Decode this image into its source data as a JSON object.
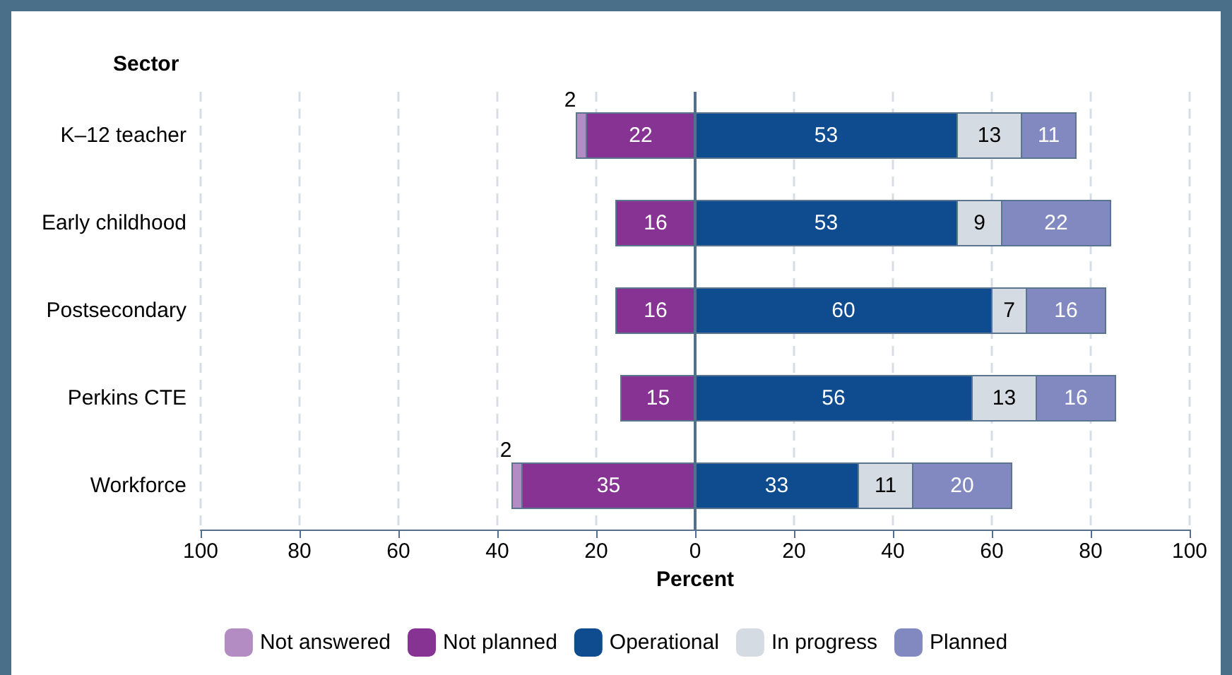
{
  "chart_data": {
    "type": "bar",
    "orientation": "horizontal",
    "ylabel": "Sector",
    "xlabel": "Percent",
    "categories": [
      "K–12 teacher",
      "Early childhood",
      "Postsecondary",
      "Perkins CTE",
      "Workforce"
    ],
    "series": [
      {
        "name": "Not answered",
        "color": "#b48cc4",
        "base": [
          -24,
          null,
          null,
          null,
          -37
        ],
        "values": [
          2,
          null,
          null,
          null,
          2
        ],
        "value_labels": [
          "2",
          null,
          null,
          null,
          "2"
        ]
      },
      {
        "name": "Not planned",
        "color": "#863393",
        "base": [
          -22,
          -16,
          -16,
          -15,
          -35
        ],
        "values": [
          22,
          16,
          16,
          15,
          35
        ],
        "value_labels": [
          "22",
          "16",
          "16",
          "15",
          "35"
        ]
      },
      {
        "name": "Operational",
        "color": "#0e4c8f",
        "base": [
          0,
          0,
          0,
          0,
          0
        ],
        "values": [
          53,
          53,
          60,
          56,
          33
        ],
        "value_labels": [
          "53",
          "53",
          "60",
          "56",
          "33"
        ]
      },
      {
        "name": "In progress",
        "color": "#d5dbe3",
        "base": [
          53,
          53,
          60,
          56,
          33
        ],
        "values": [
          13,
          9,
          7,
          13,
          11
        ],
        "value_labels": [
          "13",
          "9",
          "7",
          "13",
          "11"
        ]
      },
      {
        "name": "Planned",
        "color": "#8189c0",
        "base": [
          66,
          62,
          67,
          69,
          44
        ],
        "values": [
          11,
          22,
          16,
          16,
          20
        ],
        "value_labels": [
          "11",
          "22",
          "16",
          "16",
          "20"
        ]
      }
    ],
    "xlim": [
      -100,
      100
    ],
    "xticks": [
      {
        "value": -100,
        "label": "100"
      },
      {
        "value": -80,
        "label": "80"
      },
      {
        "value": -60,
        "label": "60"
      },
      {
        "value": -40,
        "label": "40"
      },
      {
        "value": -20,
        "label": "20"
      },
      0,
      20,
      40,
      60,
      80,
      100
    ],
    "ref_lines": [
      {
        "axis": "x",
        "value": 0,
        "color": "#55708a"
      }
    ],
    "grid": "x",
    "legend": "bottom"
  }
}
